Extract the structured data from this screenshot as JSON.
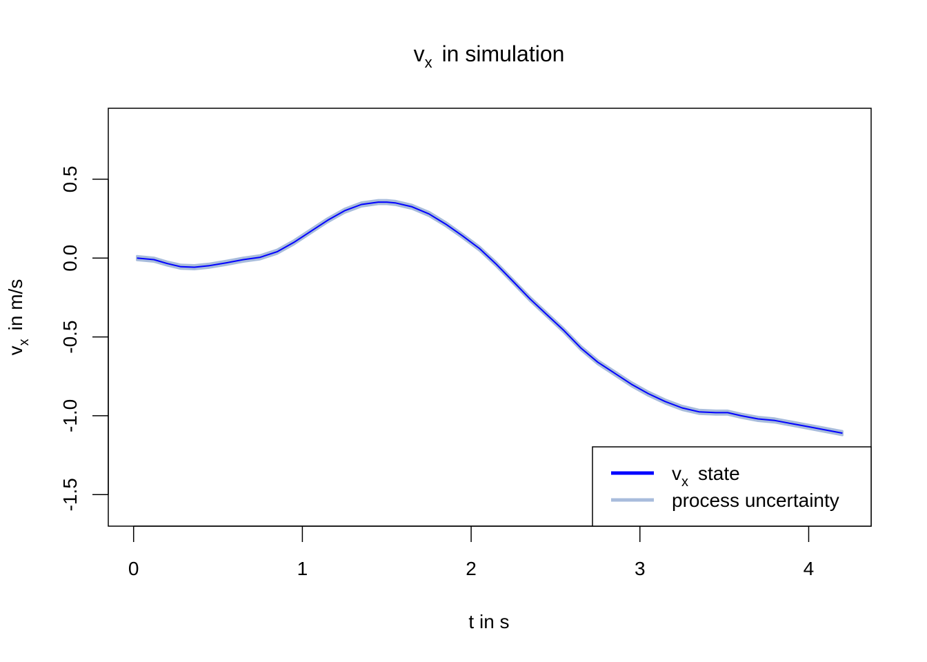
{
  "chart_data": {
    "type": "line",
    "title_main": "v",
    "title_sub": "x",
    "title_rest": "in simulation",
    "xlabel": "t in s",
    "ylabel_main": "v",
    "ylabel_sub": "x",
    "ylabel_rest": "in m/s",
    "xlim": [
      -0.15,
      4.37
    ],
    "ylim": [
      -1.7,
      0.95
    ],
    "x_ticks": [
      0,
      1,
      2,
      3,
      4
    ],
    "x_tick_labels": [
      "0",
      "1",
      "2",
      "3",
      "4"
    ],
    "y_ticks": [
      0.5,
      0.0,
      -0.5,
      -1.0,
      -1.5
    ],
    "y_tick_labels": [
      "0.5",
      "0.0",
      "-0.5",
      "-1.0",
      "-1.5"
    ],
    "grid": false,
    "legend_position": "bottom-right",
    "colors": {
      "state": "#0000ff",
      "uncertainty": "#a8bcdc"
    },
    "series": [
      {
        "name": "state",
        "legend_main": "v",
        "legend_sub": "x",
        "legend_rest": "state",
        "x": [
          0.02,
          0.12,
          0.2,
          0.28,
          0.36,
          0.45,
          0.55,
          0.65,
          0.75,
          0.85,
          0.95,
          1.05,
          1.15,
          1.25,
          1.35,
          1.45,
          1.5,
          1.55,
          1.65,
          1.75,
          1.85,
          1.95,
          2.05,
          2.15,
          2.25,
          2.35,
          2.45,
          2.55,
          2.65,
          2.75,
          2.85,
          2.95,
          3.05,
          3.15,
          3.25,
          3.35,
          3.45,
          3.52,
          3.6,
          3.7,
          3.8,
          3.9,
          4.0,
          4.1,
          4.2
        ],
        "y": [
          0.0,
          -0.01,
          -0.035,
          -0.055,
          -0.058,
          -0.048,
          -0.03,
          -0.01,
          0.005,
          0.04,
          0.1,
          0.17,
          0.24,
          0.3,
          0.34,
          0.355,
          0.355,
          0.35,
          0.325,
          0.28,
          0.215,
          0.14,
          0.06,
          -0.04,
          -0.15,
          -0.26,
          -0.36,
          -0.46,
          -0.57,
          -0.66,
          -0.73,
          -0.8,
          -0.86,
          -0.91,
          -0.95,
          -0.975,
          -0.98,
          -0.98,
          -1.0,
          -1.02,
          -1.03,
          -1.05,
          -1.07,
          -1.09,
          -1.11
        ]
      },
      {
        "name": "process uncertainty",
        "legend_label": "process uncertainty",
        "band_halfwidth": 0.013
      }
    ]
  }
}
